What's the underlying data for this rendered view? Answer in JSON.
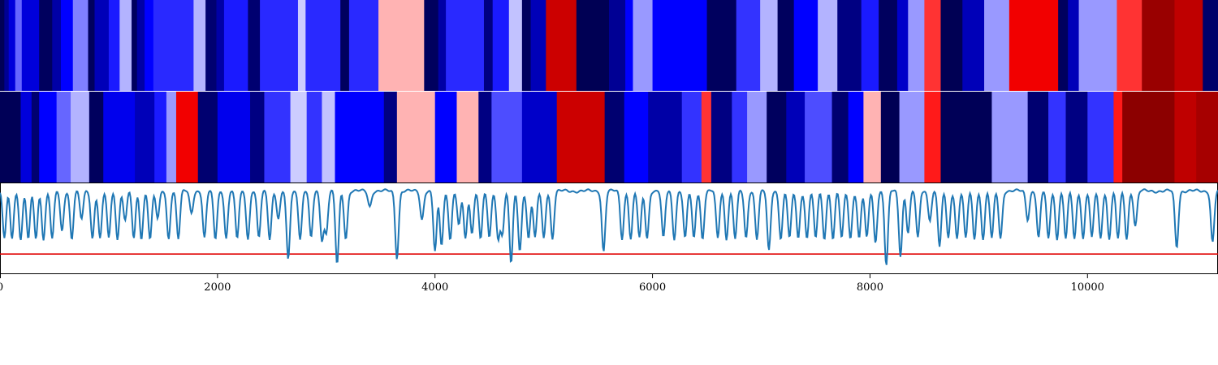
{
  "chart_data": [
    {
      "type": "heatmap",
      "panel": "top-strip",
      "x_range": [
        0,
        11200
      ],
      "colormap": "seismic",
      "value_range": [
        -1,
        1
      ],
      "segments": [
        [
          0,
          40,
          -0.97
        ],
        [
          40,
          80,
          -0.8
        ],
        [
          80,
          140,
          -0.6
        ],
        [
          140,
          200,
          -0.3
        ],
        [
          200,
          360,
          -0.6
        ],
        [
          360,
          480,
          -0.95
        ],
        [
          480,
          560,
          -0.75
        ],
        [
          560,
          670,
          -0.5
        ],
        [
          670,
          810,
          -0.25
        ],
        [
          810,
          870,
          -0.95
        ],
        [
          870,
          1000,
          -0.7
        ],
        [
          1000,
          1100,
          -0.45
        ],
        [
          1100,
          1210,
          -0.15
        ],
        [
          1210,
          1260,
          -0.95
        ],
        [
          1260,
          1330,
          -0.75
        ],
        [
          1330,
          1410,
          -0.5
        ],
        [
          1410,
          1780,
          -0.42
        ],
        [
          1780,
          1890,
          -0.15
        ],
        [
          1890,
          1990,
          -0.9
        ],
        [
          1990,
          2060,
          -0.75
        ],
        [
          2060,
          2280,
          -0.45
        ],
        [
          2280,
          2390,
          -0.9
        ],
        [
          2390,
          2740,
          -0.42
        ],
        [
          2740,
          2810,
          -0.1
        ],
        [
          2810,
          3130,
          -0.42
        ],
        [
          3130,
          3210,
          -0.95
        ],
        [
          3210,
          3480,
          -0.42
        ],
        [
          3480,
          3900,
          0.15
        ],
        [
          3900,
          4030,
          -0.95
        ],
        [
          4030,
          4100,
          -0.75
        ],
        [
          4100,
          4450,
          -0.42
        ],
        [
          4450,
          4530,
          -0.85
        ],
        [
          4530,
          4680,
          -0.45
        ],
        [
          4680,
          4800,
          -0.12
        ],
        [
          4800,
          4880,
          -0.95
        ],
        [
          4880,
          5020,
          -0.7
        ],
        [
          5020,
          5300,
          0.7
        ],
        [
          5300,
          5600,
          -0.98
        ],
        [
          5600,
          5750,
          -0.8
        ],
        [
          5750,
          5820,
          -0.5
        ],
        [
          5820,
          6000,
          -0.2
        ],
        [
          6000,
          6500,
          -0.5
        ],
        [
          6500,
          6770,
          -0.95
        ],
        [
          6770,
          6990,
          -0.4
        ],
        [
          6990,
          7150,
          -0.15
        ],
        [
          7150,
          7300,
          -0.95
        ],
        [
          7300,
          7520,
          -0.5
        ],
        [
          7520,
          7700,
          -0.15
        ],
        [
          7700,
          7920,
          -0.85
        ],
        [
          7920,
          8080,
          -0.45
        ],
        [
          8080,
          8250,
          -0.95
        ],
        [
          8250,
          8350,
          -0.65
        ],
        [
          8350,
          8500,
          -0.2
        ],
        [
          8500,
          8650,
          0.4
        ],
        [
          8650,
          8850,
          -0.98
        ],
        [
          8850,
          9050,
          -0.7
        ],
        [
          9050,
          9280,
          -0.2
        ],
        [
          9280,
          9730,
          0.55
        ],
        [
          9730,
          9820,
          -0.95
        ],
        [
          9820,
          9920,
          -0.7
        ],
        [
          9920,
          10270,
          -0.2
        ],
        [
          10270,
          10500,
          0.4
        ],
        [
          10500,
          10800,
          0.9
        ],
        [
          10800,
          11060,
          0.75
        ],
        [
          11060,
          11200,
          -0.92
        ]
      ]
    },
    {
      "type": "heatmap",
      "panel": "middle-strip",
      "x_range": [
        0,
        11200
      ],
      "colormap": "seismic",
      "value_range": [
        -1,
        1
      ],
      "segments": [
        [
          0,
          190,
          -0.97
        ],
        [
          190,
          290,
          -0.6
        ],
        [
          290,
          360,
          -0.9
        ],
        [
          360,
          520,
          -0.5
        ],
        [
          520,
          650,
          -0.3
        ],
        [
          650,
          820,
          -0.15
        ],
        [
          820,
          950,
          -0.95
        ],
        [
          950,
          1240,
          -0.55
        ],
        [
          1240,
          1420,
          -0.7
        ],
        [
          1420,
          1530,
          -0.45
        ],
        [
          1530,
          1620,
          -0.2
        ],
        [
          1620,
          1820,
          0.55
        ],
        [
          1820,
          2000,
          -0.9
        ],
        [
          2000,
          2300,
          -0.55
        ],
        [
          2300,
          2430,
          -0.85
        ],
        [
          2430,
          2670,
          -0.4
        ],
        [
          2670,
          2820,
          -0.1
        ],
        [
          2820,
          2960,
          -0.4
        ],
        [
          2960,
          3080,
          -0.12
        ],
        [
          3080,
          3530,
          -0.5
        ],
        [
          3530,
          3650,
          -0.85
        ],
        [
          3650,
          4000,
          0.15
        ],
        [
          4000,
          4200,
          -0.5
        ],
        [
          4200,
          4400,
          0.15
        ],
        [
          4400,
          4520,
          -0.85
        ],
        [
          4520,
          4800,
          -0.35
        ],
        [
          4800,
          5120,
          -0.65
        ],
        [
          5120,
          5560,
          0.7
        ],
        [
          5560,
          5740,
          -0.9
        ],
        [
          5740,
          5960,
          -0.5
        ],
        [
          5960,
          6270,
          -0.75
        ],
        [
          6270,
          6450,
          -0.4
        ],
        [
          6450,
          6540,
          0.4
        ],
        [
          6540,
          6730,
          -0.85
        ],
        [
          6730,
          6870,
          -0.4
        ],
        [
          6870,
          7050,
          -0.2
        ],
        [
          7050,
          7230,
          -0.95
        ],
        [
          7230,
          7400,
          -0.7
        ],
        [
          7400,
          7650,
          -0.35
        ],
        [
          7650,
          7800,
          -0.9
        ],
        [
          7800,
          7940,
          -0.5
        ],
        [
          7940,
          8100,
          0.15
        ],
        [
          8100,
          8270,
          -0.98
        ],
        [
          8270,
          8500,
          -0.2
        ],
        [
          8500,
          8650,
          0.45
        ],
        [
          8650,
          9120,
          -0.97
        ],
        [
          9120,
          9450,
          -0.2
        ],
        [
          9450,
          9640,
          -0.9
        ],
        [
          9640,
          9800,
          -0.4
        ],
        [
          9800,
          10000,
          -0.85
        ],
        [
          10000,
          10240,
          -0.4
        ],
        [
          10240,
          10320,
          0.45
        ],
        [
          10320,
          10800,
          0.95
        ],
        [
          10800,
          11000,
          0.75
        ],
        [
          11000,
          11200,
          0.85
        ]
      ]
    },
    {
      "type": "line",
      "panel": "bottom-trace",
      "xlim": [
        0,
        11200
      ],
      "ylim": [
        -0.62,
        0.08
      ],
      "x_ticks": [
        0,
        2000,
        4000,
        6000,
        8000,
        10000
      ],
      "x_tick_labels": [
        "0",
        "2000",
        "4000",
        "6000",
        "8000",
        "10000"
      ],
      "threshold": -0.47,
      "dips": [
        [
          40,
          -0.35
        ],
        [
          110,
          -0.35
        ],
        [
          190,
          -0.35
        ],
        [
          260,
          -0.35
        ],
        [
          330,
          -0.35
        ],
        [
          400,
          -0.35
        ],
        [
          480,
          -0.35
        ],
        [
          570,
          -0.3
        ],
        [
          660,
          -0.35
        ],
        [
          750,
          -0.2
        ],
        [
          850,
          -0.35
        ],
        [
          920,
          -0.35
        ],
        [
          1000,
          -0.35
        ],
        [
          1080,
          -0.35
        ],
        [
          1150,
          -0.2
        ],
        [
          1230,
          -0.35
        ],
        [
          1300,
          -0.35
        ],
        [
          1380,
          -0.35
        ],
        [
          1450,
          -0.2
        ],
        [
          1550,
          -0.35
        ],
        [
          1640,
          -0.35
        ],
        [
          1760,
          -0.15
        ],
        [
          1880,
          -0.35
        ],
        [
          1980,
          -0.35
        ],
        [
          2080,
          -0.35
        ],
        [
          2180,
          -0.35
        ],
        [
          2280,
          -0.35
        ],
        [
          2380,
          -0.35
        ],
        [
          2480,
          -0.35
        ],
        [
          2560,
          -0.2
        ],
        [
          2650,
          -0.52
        ],
        [
          2760,
          -0.35
        ],
        [
          2860,
          -0.35
        ],
        [
          2960,
          -0.35
        ],
        [
          3000,
          -0.3
        ],
        [
          3100,
          -0.55
        ],
        [
          3180,
          -0.35
        ],
        [
          3400,
          -0.1
        ],
        [
          3650,
          -0.5
        ],
        [
          3880,
          -0.2
        ],
        [
          4000,
          -0.45
        ],
        [
          4060,
          -0.4
        ],
        [
          4140,
          -0.35
        ],
        [
          4220,
          -0.25
        ],
        [
          4280,
          -0.35
        ],
        [
          4340,
          -0.3
        ],
        [
          4420,
          -0.35
        ],
        [
          4500,
          -0.35
        ],
        [
          4580,
          -0.35
        ],
        [
          4620,
          -0.3
        ],
        [
          4700,
          -0.55
        ],
        [
          4780,
          -0.45
        ],
        [
          4860,
          -0.35
        ],
        [
          4920,
          -0.35
        ],
        [
          5000,
          -0.35
        ],
        [
          5080,
          -0.35
        ],
        [
          5550,
          -0.45
        ],
        [
          5720,
          -0.35
        ],
        [
          5800,
          -0.35
        ],
        [
          5880,
          -0.35
        ],
        [
          5950,
          -0.35
        ],
        [
          6100,
          -0.35
        ],
        [
          6200,
          -0.35
        ],
        [
          6300,
          -0.35
        ],
        [
          6380,
          -0.35
        ],
        [
          6460,
          -0.35
        ],
        [
          6600,
          -0.35
        ],
        [
          6680,
          -0.35
        ],
        [
          6760,
          -0.35
        ],
        [
          6860,
          -0.35
        ],
        [
          6960,
          -0.35
        ],
        [
          7070,
          -0.45
        ],
        [
          7180,
          -0.35
        ],
        [
          7260,
          -0.35
        ],
        [
          7340,
          -0.35
        ],
        [
          7420,
          -0.35
        ],
        [
          7500,
          -0.35
        ],
        [
          7580,
          -0.35
        ],
        [
          7660,
          -0.35
        ],
        [
          7740,
          -0.35
        ],
        [
          7820,
          -0.35
        ],
        [
          7900,
          -0.35
        ],
        [
          7970,
          -0.35
        ],
        [
          8050,
          -0.38
        ],
        [
          8150,
          -0.56
        ],
        [
          8280,
          -0.48
        ],
        [
          8350,
          -0.3
        ],
        [
          8440,
          -0.35
        ],
        [
          8550,
          -0.2
        ],
        [
          8640,
          -0.42
        ],
        [
          8720,
          -0.35
        ],
        [
          8800,
          -0.35
        ],
        [
          8880,
          -0.35
        ],
        [
          8960,
          -0.35
        ],
        [
          9040,
          -0.35
        ],
        [
          9120,
          -0.35
        ],
        [
          9200,
          -0.35
        ],
        [
          9450,
          -0.2
        ],
        [
          9550,
          -0.35
        ],
        [
          9640,
          -0.35
        ],
        [
          9720,
          -0.35
        ],
        [
          9800,
          -0.35
        ],
        [
          9880,
          -0.35
        ],
        [
          9960,
          -0.35
        ],
        [
          10040,
          -0.35
        ],
        [
          10120,
          -0.35
        ],
        [
          10200,
          -0.35
        ],
        [
          10280,
          -0.35
        ],
        [
          10360,
          -0.35
        ],
        [
          10440,
          -0.25
        ],
        [
          10820,
          -0.42
        ],
        [
          11150,
          -0.38
        ]
      ]
    }
  ],
  "colors": {
    "trace": "#1f77b4",
    "threshold": "#e00000",
    "axis": "#000000"
  }
}
